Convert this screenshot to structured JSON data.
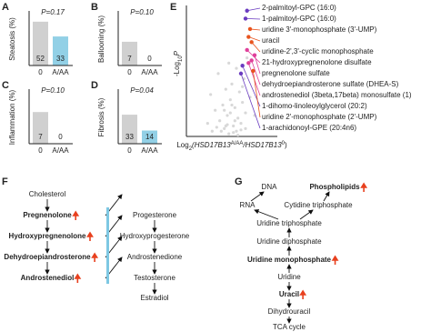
{
  "chart_data": [
    {
      "type": "bar",
      "panel": "A",
      "ylabel": "Steatosis (%)",
      "pvalue": "P=0.17",
      "categories": [
        "0",
        "A/AA"
      ],
      "values": [
        83,
        55
      ],
      "counts": [
        52,
        33
      ],
      "colors": [
        "#d0d0d0",
        "#92d0e6"
      ],
      "ylim": [
        0,
        100
      ]
    },
    {
      "type": "bar",
      "panel": "B",
      "ylabel": "Ballooning (%)",
      "pvalue": "P=0.10",
      "categories": [
        "0",
        "A/AA"
      ],
      "values": [
        45,
        0
      ],
      "counts": [
        7,
        0
      ],
      "colors": [
        "#d0d0d0",
        "#92d0e6"
      ],
      "ylim": [
        0,
        100
      ]
    },
    {
      "type": "bar",
      "panel": "C",
      "ylabel": "Inflammation (%)",
      "pvalue": "P=0.10",
      "categories": [
        "0",
        "A/AA"
      ],
      "values": [
        60,
        0
      ],
      "counts": [
        7,
        0
      ],
      "colors": [
        "#d0d0d0",
        "#92d0e6"
      ],
      "ylim": [
        0,
        100
      ]
    },
    {
      "type": "bar",
      "panel": "D",
      "ylabel": "Fibrosis (%)",
      "pvalue": "P=0.04",
      "categories": [
        "0",
        "A/AA"
      ],
      "values": [
        55,
        25
      ],
      "counts": [
        33,
        14
      ],
      "colors": [
        "#d0d0d0",
        "#92d0e6"
      ],
      "ylim": [
        0,
        100
      ]
    },
    {
      "type": "scatter",
      "panel": "E",
      "xlabel": [
        {
          "text": "Log"
        },
        {
          "text": "2",
          "sub": true
        },
        {
          "text": "(HSD17B13",
          "italic": true
        },
        {
          "text": "A/AA",
          "sup": true
        },
        {
          "text": "/HSD17B13",
          "italic": true
        },
        {
          "text": "0",
          "sup": true
        },
        {
          "text": ")"
        }
      ],
      "ylabel": [
        {
          "text": "-Log"
        },
        {
          "text": "10",
          "sub": true
        },
        {
          "text": "P",
          "italic": true
        }
      ],
      "xlim": [
        -3,
        3
      ],
      "ylim": [
        0,
        5
      ],
      "background": {
        "color": "#d8d8d8",
        "x": [
          -0.2,
          0.3,
          -0.5,
          0.1,
          0.6,
          -0.8,
          0.4,
          -0.3,
          0.9,
          -1.1,
          0.2,
          -0.6,
          0.7,
          -0.1,
          1.2,
          -1.4,
          0.5,
          -0.4,
          0.0,
          0.8,
          -0.9,
          0.3,
          -0.2,
          1.0,
          -0.7,
          0.1,
          -1.6,
          0.6,
          -0.3,
          1.5,
          -1.0,
          0.4,
          -0.5,
          0.2,
          -0.1,
          0.9,
          -1.3,
          0.7,
          0.0,
          -0.4
        ],
        "y": [
          0.1,
          0.2,
          0.3,
          0.4,
          0.5,
          0.6,
          0.7,
          0.8,
          0.9,
          1.0,
          1.1,
          1.2,
          1.3,
          1.4,
          1.5,
          1.6,
          1.7,
          1.8,
          2.0,
          2.2,
          2.4,
          2.6,
          2.8,
          3.0,
          0.2,
          0.15,
          0.5,
          0.25,
          0.45,
          0.8,
          0.35,
          0.05,
          1.0,
          0.6,
          0.9,
          0.3,
          0.2,
          1.9,
          1.2,
          0.4
        ]
      },
      "highlighted": [
        {
          "label": "2-palmitoyl-GPC (16:0)",
          "color": "#6a3bc0",
          "x": 1.0,
          "y": 4.8
        },
        {
          "label": "1-palmitoyl-GPC (16:0)",
          "color": "#6a3bc0",
          "x": 0.9,
          "y": 4.5
        },
        {
          "label": "uridine 3'-monophosphate (3'-UMP)",
          "color": "#e8541e",
          "x": 1.2,
          "y": 4.1
        },
        {
          "label": "uracil",
          "color": "#e8541e",
          "x": 1.1,
          "y": 3.8
        },
        {
          "label": "uridine-2',3'-cyclic monophosphate",
          "color": "#e8541e",
          "x": 1.3,
          "y": 3.6
        },
        {
          "label": "21-hydroxypregnenolone disulfate",
          "color": "#e0409a",
          "x": 1.0,
          "y": 3.3
        },
        {
          "label": "pregnenolone sulfate",
          "color": "#e0409a",
          "x": 1.5,
          "y": 3.1
        },
        {
          "label": "dehydroepiandrosterone sulfate (DHEA-S)",
          "color": "#e0409a",
          "x": 1.3,
          "y": 2.9
        },
        {
          "label": "androstenediol (3beta,17beta) monosulfate (1)",
          "color": "#e0409a",
          "x": 1.1,
          "y": 2.8
        },
        {
          "label": "1-dihomo-linoleoylglycerol (20:2)",
          "color": "#6a3bc0",
          "x": 0.7,
          "y": 2.7
        },
        {
          "label": "uridine 2'-monophosphate (2'-UMP)",
          "color": "#e8541e",
          "x": 1.4,
          "y": 2.5
        },
        {
          "label": "1-arachidonoyl-GPE (20:4n6)",
          "color": "#6a3bc0",
          "x": 0.6,
          "y": 2.4
        }
      ]
    }
  ],
  "diagrams": [
    {
      "panel": "F",
      "nodes": [
        {
          "label": "Cholesterol"
        },
        {
          "label": "Pregnenolone",
          "color": "#e0409a",
          "bold": true,
          "up": true
        },
        {
          "label": "Hydroxypregnenolone",
          "color": "#e0409a",
          "bold": true,
          "up": true
        },
        {
          "label": "Dehydroepiandrosterone",
          "color": "#e0409a",
          "bold": true,
          "up": true
        },
        {
          "label": "Androstenediol",
          "color": "#e0409a",
          "bold": true,
          "up": true
        },
        {
          "label": "Progesterone"
        },
        {
          "label": "Hydroxyprogesterone"
        },
        {
          "label": "Androstenedione"
        },
        {
          "label": "Testosterone"
        },
        {
          "label": "Estradiol"
        }
      ]
    },
    {
      "panel": "G",
      "nodes": [
        {
          "label": "DNA"
        },
        {
          "label": "Phospholipids",
          "color": "#6a3bc0",
          "bold": true,
          "up": true
        },
        {
          "label": "RNA"
        },
        {
          "label": "Cytidine triphosphate"
        },
        {
          "label": "Uridine triphosphate"
        },
        {
          "label": "Uridine diphosphate"
        },
        {
          "label": "Uridine monophosphate",
          "color": "#e8541e",
          "bold": true,
          "up": true
        },
        {
          "label": "Uridine"
        },
        {
          "label": "Uracil",
          "color": "#e8541e",
          "bold": true,
          "up": true
        },
        {
          "label": "Dihydrouracil"
        },
        {
          "label": "TCA cycle"
        }
      ]
    }
  ]
}
